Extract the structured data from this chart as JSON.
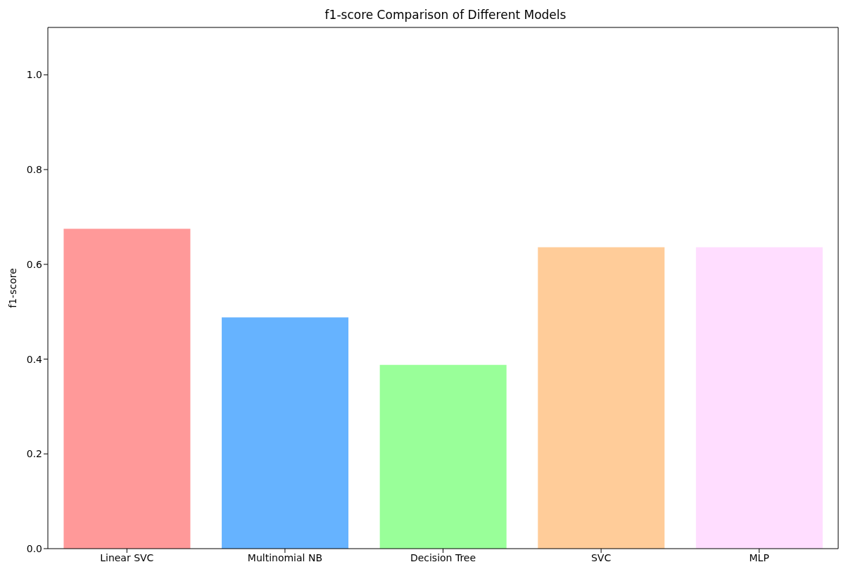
{
  "chart_data": {
    "type": "bar",
    "title": "f1-score Comparison of Different Models",
    "ylabel": "f1-score",
    "categories": [
      "Linear SVC",
      "Multinomial NB",
      "Decision Tree",
      "SVC",
      "MLP"
    ],
    "values": [
      0.675,
      0.488,
      0.388,
      0.636,
      0.636
    ],
    "colors": [
      "#ff9999",
      "#66b3ff",
      "#99ff99",
      "#ffcc99",
      "#ffddff"
    ],
    "ylim": [
      0,
      1.1
    ],
    "yticks": [
      {
        "value": 0,
        "label": "0.0"
      },
      {
        "value": 0.2,
        "label": "0.2"
      },
      {
        "value": 0.4,
        "label": "0.4"
      },
      {
        "value": 0.6,
        "label": "0.6"
      },
      {
        "value": 0.8,
        "label": "0.8"
      },
      {
        "value": 1,
        "label": "1.0"
      }
    ],
    "grid": false
  }
}
